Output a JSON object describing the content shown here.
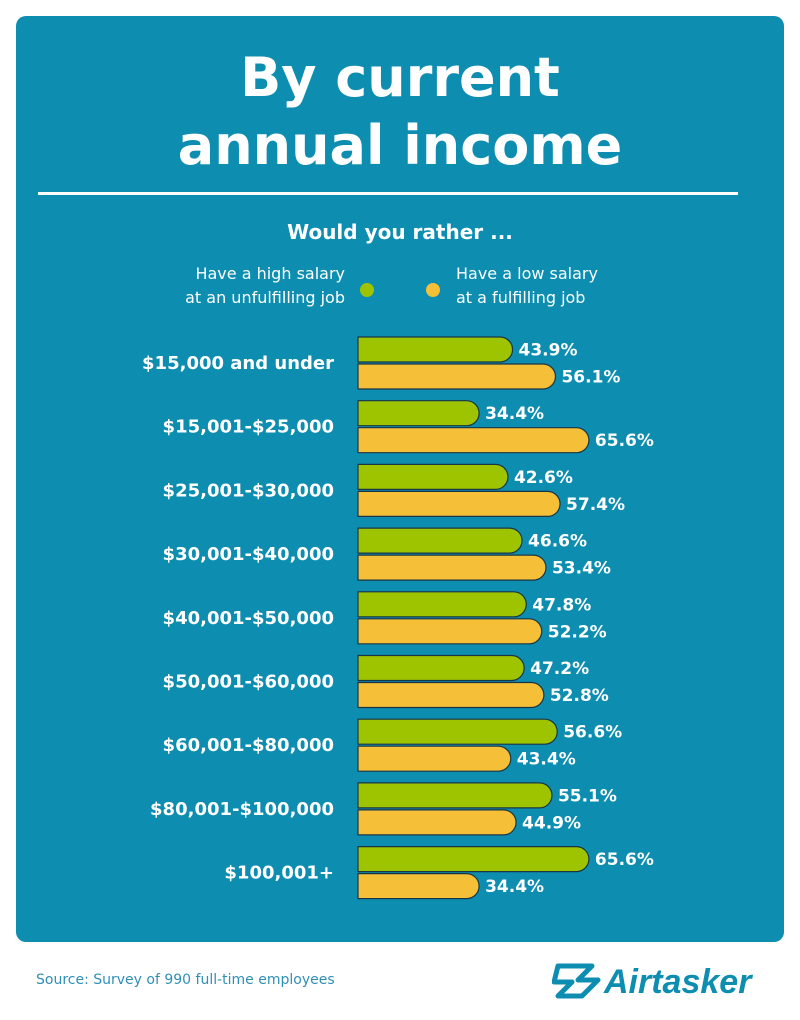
{
  "title": {
    "line1": "By current",
    "line2": "annual income"
  },
  "question": "Would you rather ...",
  "legend": {
    "high": {
      "line1": "Have a high salary",
      "line2": "at an unfulfilling job",
      "color": "#9ec400"
    },
    "low": {
      "line1": "Have a low salary",
      "line2": "at a fulfilling job",
      "color": "#f6bf38"
    }
  },
  "chart_data": {
    "type": "bar",
    "orientation": "horizontal",
    "categories": [
      "$15,000 and under",
      "$15,001-$25,000",
      "$25,001-$30,000",
      "$30,001-$40,000",
      "$40,001-$50,000",
      "$50,001-$60,000",
      "$60,001-$80,000",
      "$80,001-$100,000",
      "$100,001+"
    ],
    "series": [
      {
        "name": "Have a high salary at an unfulfilling job",
        "values": [
          43.9,
          34.4,
          42.6,
          46.6,
          47.8,
          47.2,
          56.6,
          55.1,
          65.6
        ],
        "labels": [
          "43.9%",
          "34.4%",
          "42.6%",
          "46.6%",
          "47.8%",
          "47.2%",
          "56.6%",
          "55.1%",
          "65.6%"
        ],
        "color": "#9ec400"
      },
      {
        "name": "Have a low salary at a fulfilling job",
        "values": [
          56.1,
          65.6,
          57.4,
          53.4,
          52.2,
          52.8,
          43.4,
          44.9,
          34.4
        ],
        "labels": [
          "56.1%",
          "65.6%",
          "57.4%",
          "53.4%",
          "52.2%",
          "52.8%",
          "43.4%",
          "44.9%",
          "34.4%"
        ],
        "color": "#f6bf38"
      }
    ],
    "xlim": [
      0,
      100
    ],
    "grid": false,
    "legend_position": "top"
  },
  "source": "Source: Survey of 990 full-time employees",
  "brand": {
    "name": "Airtasker",
    "color": "#0d8db0"
  },
  "colors": {
    "panel": "#0d8db0",
    "text": "#ffffff"
  }
}
